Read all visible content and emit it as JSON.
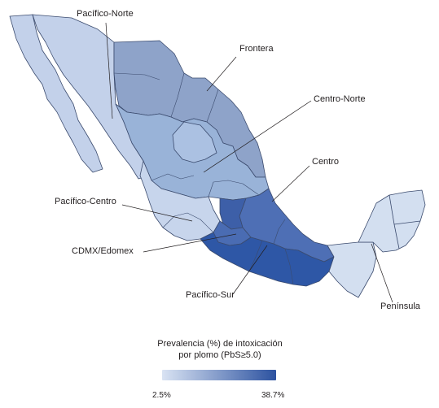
{
  "map": {
    "region_labels": {
      "pacifico_norte": "Pacífico-Norte",
      "frontera": "Frontera",
      "centro_norte": "Centro-Norte",
      "centro": "Centro",
      "pacifico_centro": "Pacífico-Centro",
      "cdmx_edomex": "CDMX/Edomex",
      "pacifico_sur": "Pacífico-Sur",
      "peninsula": "Península"
    },
    "colors": {
      "pacifico_norte": "#c3d1ea",
      "frontera": "#8ea3c9",
      "centro_norte": "#99b3d8",
      "centro_norte_alt": "#abc1e2",
      "centro": "#4e6fb5",
      "centro_dark": "#3d5fa8",
      "pacifico_centro": "#c7d5ec",
      "cdmx_edomex": "#4a6cb3",
      "pacifico_sur": "#2e57a6",
      "peninsula": "#d3dff0",
      "border": "#3b4b6e"
    }
  },
  "legend": {
    "title_line1": "Prevalencia (%) de intoxicación",
    "title_line2": "por plomo (PbS≥5.0)",
    "min_label": "2.5%",
    "max_label": "38.7%",
    "gradient_start": "#d9e3f3",
    "gradient_end": "#2c52a0"
  }
}
